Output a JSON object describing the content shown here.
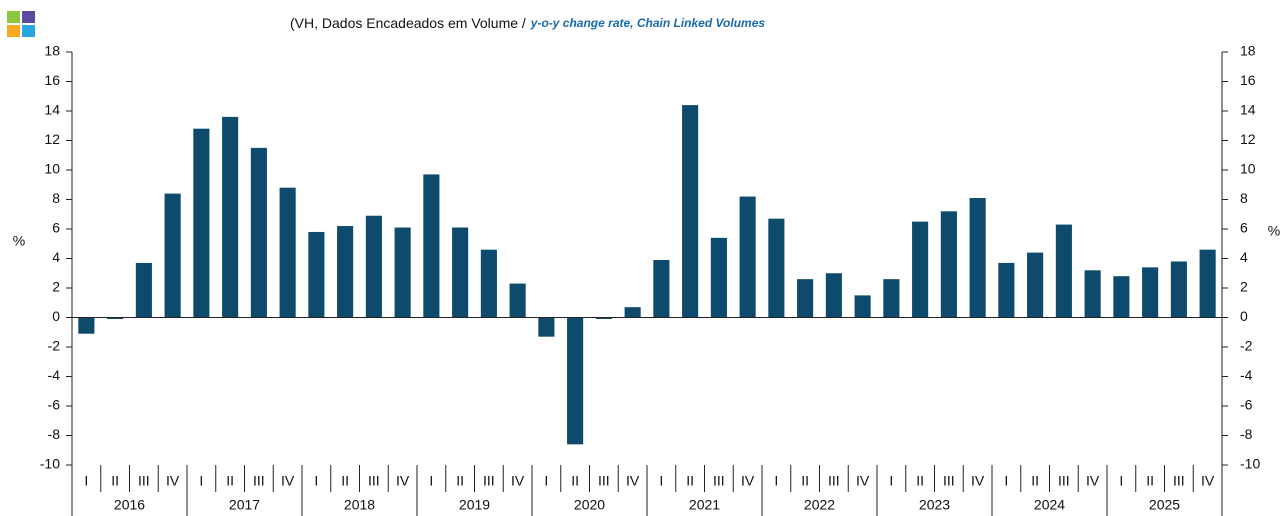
{
  "chart_data": {
    "type": "bar",
    "title": "(VH, Dados Encadeados em Volume /",
    "subtitle": "y-o-y change rate, Chain Linked Volumes",
    "ylabel": "%",
    "y2label": "%",
    "categories": [
      "I",
      "II",
      "III",
      "IV",
      "I",
      "II",
      "III",
      "IV",
      "I",
      "II",
      "III",
      "IV",
      "I",
      "II",
      "III",
      "IV",
      "I",
      "II",
      "III",
      "IV",
      "I",
      "II",
      "III",
      "IV",
      "I",
      "II",
      "III",
      "IV",
      "I",
      "II",
      "III",
      "IV",
      "I",
      "II",
      "III",
      "IV",
      "I",
      "II",
      "III",
      "IV"
    ],
    "years": [
      "2016",
      "2017",
      "2018",
      "2019",
      "2020",
      "2021",
      "2022",
      "2023",
      "2024",
      "2025"
    ],
    "values": [
      -1.1,
      -0.1,
      3.7,
      8.4,
      12.8,
      13.6,
      11.5,
      8.8,
      5.8,
      6.2,
      6.9,
      6.1,
      9.7,
      6.1,
      4.6,
      2.3,
      -1.3,
      -8.6,
      -0.1,
      0.7,
      3.9,
      14.4,
      5.4,
      8.2,
      6.7,
      2.6,
      3.0,
      1.5,
      2.6,
      6.5,
      7.2,
      8.1,
      3.7,
      4.4,
      6.3,
      3.2,
      2.8,
      3.4,
      3.8,
      4.6
    ],
    "color": "#0d4a6b",
    "ylim": [
      -10,
      18
    ],
    "yticks": [
      -10,
      -8,
      -6,
      -4,
      -2,
      0,
      2,
      4,
      6,
      8,
      10,
      12,
      14,
      16,
      18
    ],
    "y2lim": [
      -10,
      18
    ],
    "y2ticks": [
      -10,
      -8,
      -6,
      -4,
      -2,
      0,
      2,
      4,
      6,
      8,
      10,
      12,
      14,
      16,
      18
    ],
    "grid": false
  }
}
